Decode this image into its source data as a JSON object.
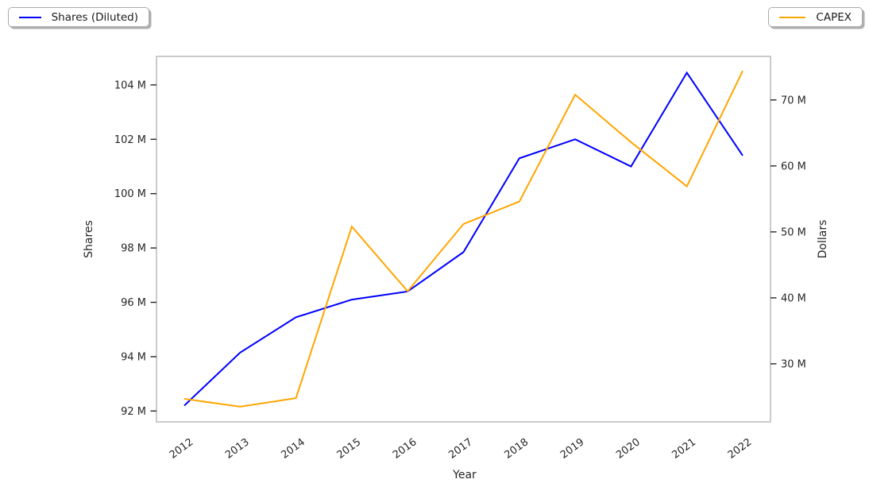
{
  "chart_data": {
    "type": "line",
    "title": "",
    "xlabel": "Year",
    "x": [
      2012,
      2013,
      2014,
      2015,
      2016,
      2017,
      2018,
      2019,
      2020,
      2021,
      2022
    ],
    "x_tick_labels": [
      "2012",
      "2013",
      "2014",
      "2015",
      "2016",
      "2017",
      "2018",
      "2019",
      "2020",
      "2021",
      "2022"
    ],
    "series": [
      {
        "name": "Shares (Diluted)",
        "axis": "left",
        "color": "#0000ff",
        "values": [
          92.2,
          94.15,
          95.45,
          96.1,
          96.4,
          97.85,
          101.3,
          102.0,
          101.0,
          104.45,
          101.4
        ]
      },
      {
        "name": "CAPEX",
        "axis": "right",
        "color": "#ffa500",
        "values": [
          24.7,
          23.5,
          24.8,
          50.8,
          41.0,
          51.2,
          54.6,
          70.8,
          63.6,
          56.9,
          74.4
        ]
      }
    ],
    "left_axis": {
      "label": "Shares",
      "unit": "M",
      "min": 91.6,
      "max": 105.05,
      "tick_values": [
        92,
        94,
        96,
        98,
        100,
        102,
        104
      ],
      "tick_labels": [
        "92 M",
        "94 M",
        "96 M",
        "98 M",
        "100 M",
        "102 M",
        "104 M"
      ]
    },
    "right_axis": {
      "label": "Dollars",
      "unit": "M",
      "min": 21.2,
      "max": 76.6,
      "tick_values": [
        30,
        40,
        50,
        60,
        70
      ],
      "tick_labels": [
        "30 M",
        "40 M",
        "50 M",
        "60 M",
        "70 M"
      ]
    },
    "legend": [
      {
        "label": "Shares (Diluted)",
        "color": "#0000ff",
        "position": "top-left"
      },
      {
        "label": "CAPEX",
        "color": "#ffa500",
        "position": "top-right"
      }
    ],
    "grid": false,
    "plot_border_color": "#cbcbcb",
    "tick_color": "#262626"
  }
}
